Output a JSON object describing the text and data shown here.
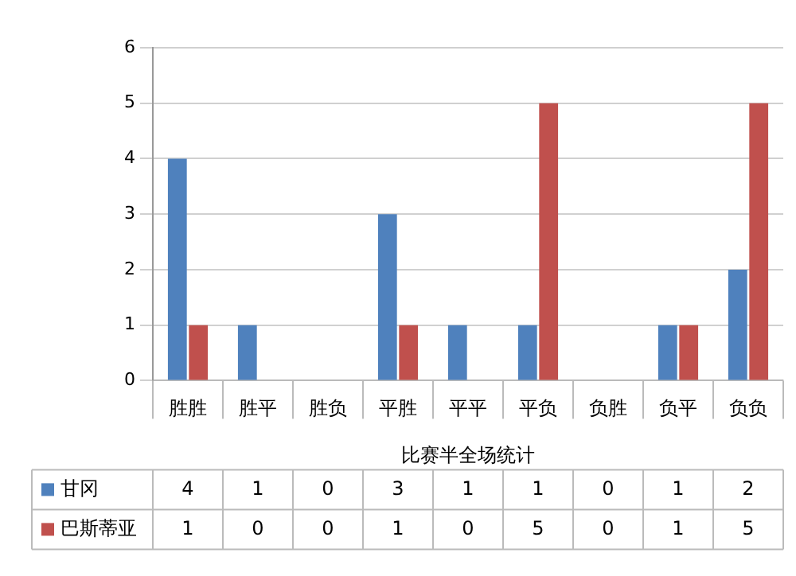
{
  "chart_data": {
    "type": "bar",
    "xlabel": "比赛半全场统计",
    "categories": [
      "胜胜",
      "胜平",
      "胜负",
      "平胜",
      "平平",
      "平负",
      "负胜",
      "负平",
      "负负"
    ],
    "series": [
      {
        "name": "甘冈",
        "color": "#4f81bd",
        "values": [
          4,
          1,
          0,
          3,
          1,
          1,
          0,
          1,
          2
        ]
      },
      {
        "name": "巴斯蒂亚",
        "color": "#c0504d",
        "values": [
          1,
          0,
          0,
          1,
          0,
          5,
          0,
          1,
          5
        ]
      }
    ],
    "ylim": [
      0,
      6
    ],
    "yticks": [
      0,
      1,
      2,
      3,
      4,
      5,
      6
    ],
    "grid": "y",
    "legend": "bottom",
    "data_labels": true
  }
}
